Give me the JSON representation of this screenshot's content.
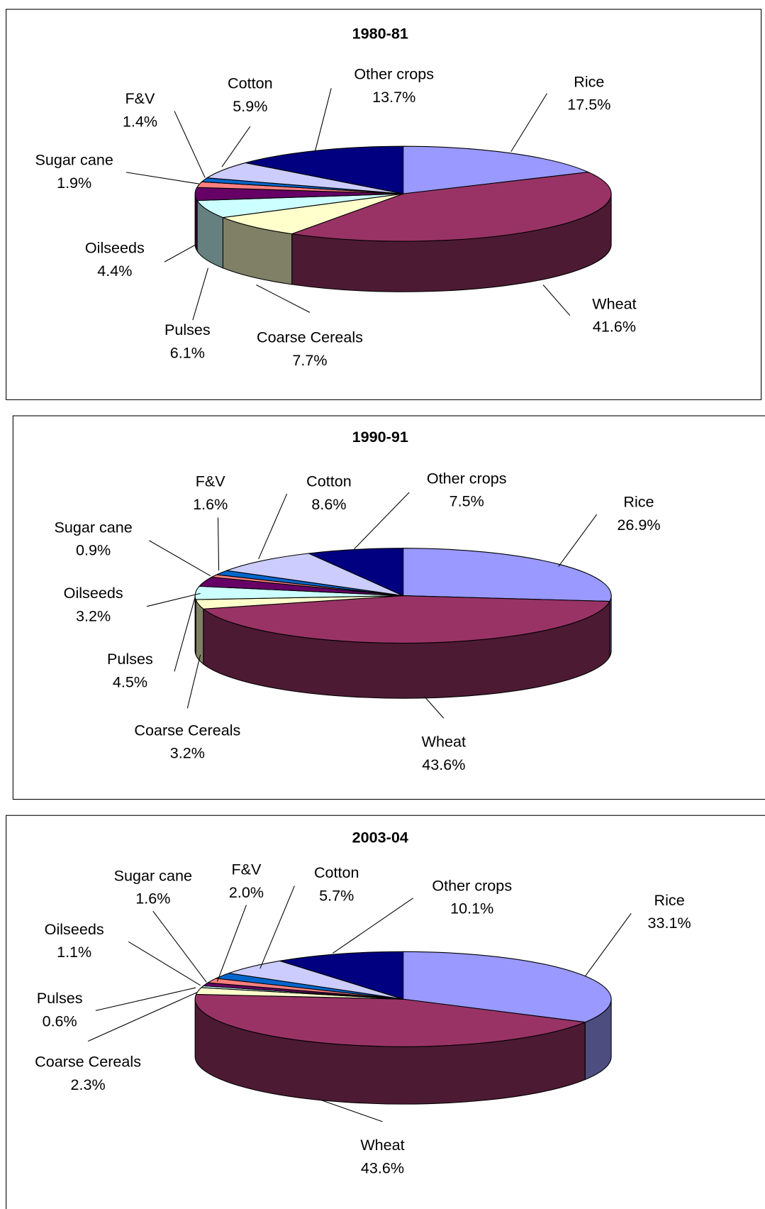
{
  "chart_data": [
    {
      "type": "pie",
      "title": "1980-81",
      "categories": [
        "Rice",
        "Wheat",
        "Coarse Cereals",
        "Pulses",
        "Oilseeds",
        "Sugar cane",
        "F&V",
        "Cotton",
        "Other crops"
      ],
      "values": [
        17.5,
        41.6,
        7.7,
        6.1,
        4.4,
        1.9,
        1.4,
        5.9,
        13.7
      ],
      "value_labels": [
        "17.5%",
        "41.6%",
        "7.7%",
        "6.1%",
        "4.4%",
        "1.9%",
        "1.4%",
        "5.9%",
        "13.7%"
      ],
      "colors": [
        "#9999ff",
        "#993366",
        "#ffffcc",
        "#ccffff",
        "#660066",
        "#ff8080",
        "#0066cc",
        "#ccccff",
        "#000080"
      ]
    },
    {
      "type": "pie",
      "title": "1990-91",
      "categories": [
        "Rice",
        "Wheat",
        "Coarse Cereals",
        "Pulses",
        "Oilseeds",
        "Sugar cane",
        "F&V",
        "Cotton",
        "Other crops"
      ],
      "values": [
        26.9,
        43.6,
        3.2,
        4.5,
        3.2,
        0.9,
        1.6,
        8.6,
        7.5
      ],
      "value_labels": [
        "26.9%",
        "43.6%",
        "3.2%",
        "4.5%",
        "3.2%",
        "0.9%",
        "1.6%",
        "8.6%",
        "7.5%"
      ],
      "colors": [
        "#9999ff",
        "#993366",
        "#ffffcc",
        "#ccffff",
        "#660066",
        "#ff8080",
        "#0066cc",
        "#ccccff",
        "#000080"
      ]
    },
    {
      "type": "pie",
      "title": "2003-04",
      "categories": [
        "Rice",
        "Wheat",
        "Coarse Cereals",
        "Pulses",
        "Oilseeds",
        "Sugar cane",
        "F&V",
        "Cotton",
        "Other crops"
      ],
      "values": [
        33.1,
        43.6,
        2.3,
        0.6,
        1.1,
        1.6,
        2.0,
        5.7,
        10.1
      ],
      "value_labels": [
        "33.1%",
        "43.6%",
        "2.3%",
        "0.6%",
        "1.1%",
        "1.6%",
        "2.0%",
        "5.7%",
        "10.1%"
      ],
      "colors": [
        "#9999ff",
        "#993366",
        "#ffffcc",
        "#ccffff",
        "#660066",
        "#ff8080",
        "#0066cc",
        "#ccccff",
        "#000080"
      ]
    }
  ]
}
